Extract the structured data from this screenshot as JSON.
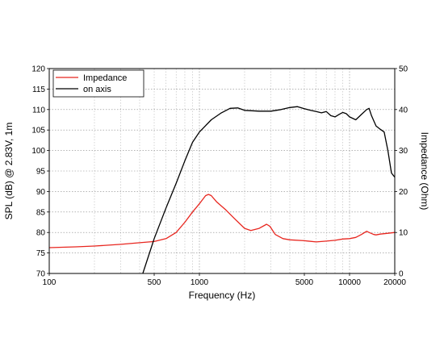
{
  "chart_data": {
    "type": "line",
    "title": "",
    "xlabel": "Frequency (Hz)",
    "ylabel_left": "SPL (dB) @ 2.83V, 1m",
    "ylabel_right": "Impedance (Ohm)",
    "xscale": "log",
    "xlim": [
      100,
      20000
    ],
    "ylim_left": [
      70,
      120
    ],
    "ylim_right": [
      0,
      50
    ],
    "x_major_ticks": [
      100,
      500,
      1000,
      5000,
      10000,
      20000
    ],
    "x_tick_labels": [
      "100",
      "500",
      "1000",
      "5000",
      "10000",
      "20000"
    ],
    "y_left_ticks": [
      70,
      75,
      80,
      85,
      90,
      95,
      100,
      105,
      110,
      115,
      120
    ],
    "y_right_ticks": [
      0,
      10,
      20,
      30,
      40,
      50
    ],
    "grid": true,
    "legend_position": "top-left",
    "series": [
      {
        "name": "Impedance",
        "axis": "right",
        "color": "#e8261f",
        "points": [
          [
            100,
            6.3
          ],
          [
            150,
            6.5
          ],
          [
            200,
            6.7
          ],
          [
            300,
            7.1
          ],
          [
            400,
            7.5
          ],
          [
            500,
            7.8
          ],
          [
            600,
            8.5
          ],
          [
            700,
            10.0
          ],
          [
            800,
            12.5
          ],
          [
            900,
            15.0
          ],
          [
            1000,
            17.0
          ],
          [
            1100,
            19.0
          ],
          [
            1150,
            19.3
          ],
          [
            1200,
            19.0
          ],
          [
            1300,
            17.5
          ],
          [
            1500,
            15.5
          ],
          [
            1700,
            13.5
          ],
          [
            2000,
            11.0
          ],
          [
            2200,
            10.5
          ],
          [
            2500,
            11.0
          ],
          [
            2800,
            12.0
          ],
          [
            2950,
            11.5
          ],
          [
            3200,
            9.5
          ],
          [
            3600,
            8.5
          ],
          [
            4000,
            8.2
          ],
          [
            5000,
            8.0
          ],
          [
            6000,
            7.7
          ],
          [
            7000,
            7.9
          ],
          [
            8000,
            8.1
          ],
          [
            9000,
            8.4
          ],
          [
            10000,
            8.5
          ],
          [
            11000,
            8.8
          ],
          [
            12000,
            9.5
          ],
          [
            13000,
            10.3
          ],
          [
            13500,
            10.0
          ],
          [
            14500,
            9.5
          ],
          [
            15000,
            9.4
          ],
          [
            16000,
            9.6
          ],
          [
            18000,
            9.8
          ],
          [
            20000,
            10.0
          ]
        ]
      },
      {
        "name": "on axis",
        "axis": "left",
        "color": "#000000",
        "points": [
          [
            420,
            70.0
          ],
          [
            500,
            78.5
          ],
          [
            600,
            86.0
          ],
          [
            700,
            92.0
          ],
          [
            800,
            97.5
          ],
          [
            900,
            102.0
          ],
          [
            1000,
            104.5
          ],
          [
            1200,
            107.5
          ],
          [
            1400,
            109.2
          ],
          [
            1600,
            110.3
          ],
          [
            1800,
            110.4
          ],
          [
            2000,
            109.8
          ],
          [
            2500,
            109.6
          ],
          [
            3000,
            109.6
          ],
          [
            3500,
            110.0
          ],
          [
            4000,
            110.5
          ],
          [
            4500,
            110.7
          ],
          [
            5000,
            110.2
          ],
          [
            5500,
            109.8
          ],
          [
            6000,
            109.5
          ],
          [
            6500,
            109.2
          ],
          [
            7000,
            109.5
          ],
          [
            7500,
            108.5
          ],
          [
            8000,
            108.2
          ],
          [
            8500,
            108.8
          ],
          [
            9000,
            109.3
          ],
          [
            9500,
            109.0
          ],
          [
            10000,
            108.2
          ],
          [
            11000,
            107.5
          ],
          [
            12000,
            108.8
          ],
          [
            13000,
            110.0
          ],
          [
            13500,
            110.3
          ],
          [
            14000,
            108.5
          ],
          [
            15000,
            106.0
          ],
          [
            16000,
            105.2
          ],
          [
            17000,
            104.5
          ],
          [
            18000,
            100.0
          ],
          [
            19000,
            94.5
          ],
          [
            20000,
            93.5
          ]
        ]
      }
    ]
  }
}
